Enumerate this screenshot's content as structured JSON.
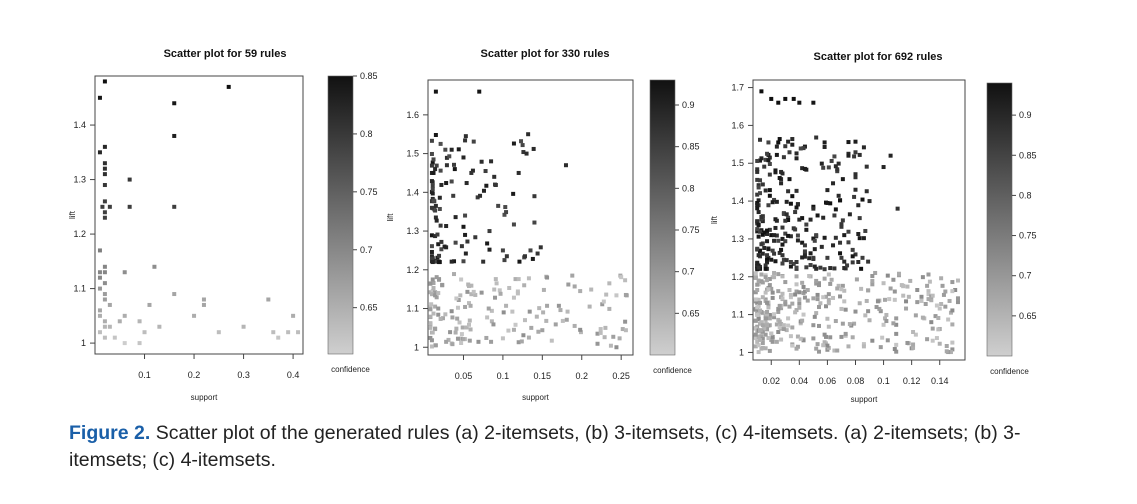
{
  "figure_caption": {
    "label": "Figure 2.",
    "text": "Scatter plot of the generated rules (a) 2-itemsets, (b) 3-itemsets, (c) 4-itemsets. (a) 2-itemsets; (b) 3-itemsets; (c) 4-itemsets."
  },
  "colors": {
    "caption_label": "#1a5fa8",
    "high_confidence": "#111111",
    "low_confidence": "#cccccc"
  },
  "chart_data": [
    {
      "type": "scatter",
      "title": "Scatter plot for 59 rules",
      "xlabel": "support",
      "ylabel": "lift",
      "colorbar_label": "confidence",
      "xlim": [
        0,
        0.42
      ],
      "ylim": [
        0.98,
        1.49
      ],
      "xticks": [
        0.1,
        0.2,
        0.3,
        0.4
      ],
      "xtick_labels": [
        "0.1",
        "0.2",
        "0.3",
        "0.4"
      ],
      "yticks": [
        1.0,
        1.1,
        1.2,
        1.3,
        1.4
      ],
      "ytick_labels": [
        "1",
        "1.1",
        "1.2",
        "1.3",
        "1.4"
      ],
      "color_range": [
        0.61,
        0.85
      ],
      "cticks": [
        0.65,
        0.7,
        0.75,
        0.8,
        0.85
      ],
      "ctick_labels": [
        "0.65",
        "0.7",
        "0.75",
        "0.8",
        "0.85"
      ],
      "points": [
        [
          0.02,
          1.48,
          0.85
        ],
        [
          0.01,
          1.45,
          0.84
        ],
        [
          0.16,
          1.44,
          0.84
        ],
        [
          0.27,
          1.47,
          0.85
        ],
        [
          0.16,
          1.38,
          0.83
        ],
        [
          0.02,
          1.36,
          0.82
        ],
        [
          0.01,
          1.35,
          0.82
        ],
        [
          0.02,
          1.33,
          0.81
        ],
        [
          0.02,
          1.32,
          0.81
        ],
        [
          0.02,
          1.31,
          0.81
        ],
        [
          0.07,
          1.3,
          0.8
        ],
        [
          0.02,
          1.29,
          0.8
        ],
        [
          0.015,
          1.25,
          0.79
        ],
        [
          0.02,
          1.26,
          0.79
        ],
        [
          0.03,
          1.25,
          0.79
        ],
        [
          0.02,
          1.24,
          0.79
        ],
        [
          0.02,
          1.23,
          0.79
        ],
        [
          0.07,
          1.25,
          0.79
        ],
        [
          0.16,
          1.25,
          0.79
        ],
        [
          0.01,
          1.17,
          0.71
        ],
        [
          0.02,
          1.14,
          0.7
        ],
        [
          0.02,
          1.13,
          0.7
        ],
        [
          0.06,
          1.13,
          0.69
        ],
        [
          0.12,
          1.14,
          0.69
        ],
        [
          0.01,
          1.12,
          0.7
        ],
        [
          0.02,
          1.11,
          0.69
        ],
        [
          0.01,
          1.1,
          0.68
        ],
        [
          0.02,
          1.09,
          0.67
        ],
        [
          0.16,
          1.09,
          0.66
        ],
        [
          0.01,
          1.06,
          0.66
        ],
        [
          0.01,
          1.05,
          0.65
        ],
        [
          0.02,
          1.04,
          0.65
        ],
        [
          0.02,
          1.03,
          0.64
        ],
        [
          0.01,
          1.02,
          0.63
        ],
        [
          0.02,
          1.01,
          0.63
        ],
        [
          0.05,
          1.04,
          0.65
        ],
        [
          0.06,
          1.05,
          0.65
        ],
        [
          0.09,
          1.04,
          0.64
        ],
        [
          0.09,
          1.0,
          0.62
        ],
        [
          0.1,
          1.02,
          0.63
        ],
        [
          0.13,
          1.03,
          0.64
        ],
        [
          0.2,
          1.05,
          0.65
        ],
        [
          0.22,
          1.07,
          0.66
        ],
        [
          0.22,
          1.08,
          0.66
        ],
        [
          0.25,
          1.02,
          0.63
        ],
        [
          0.3,
          1.03,
          0.64
        ],
        [
          0.35,
          1.08,
          0.66
        ],
        [
          0.36,
          1.02,
          0.63
        ],
        [
          0.37,
          1.01,
          0.62
        ],
        [
          0.39,
          1.02,
          0.63
        ],
        [
          0.4,
          1.05,
          0.65
        ],
        [
          0.41,
          1.02,
          0.63
        ],
        [
          0.03,
          1.03,
          0.64
        ],
        [
          0.04,
          1.01,
          0.62
        ],
        [
          0.06,
          1.0,
          0.61
        ],
        [
          0.11,
          1.07,
          0.66
        ],
        [
          0.03,
          1.07,
          0.66
        ],
        [
          0.02,
          1.08,
          0.67
        ],
        [
          0.01,
          1.13,
          0.7
        ]
      ]
    },
    {
      "type": "scatter",
      "title": "Scatter plot for 330 rules",
      "xlabel": "support",
      "ylabel": "lift",
      "colorbar_label": "confidence",
      "xlim": [
        0.005,
        0.265
      ],
      "ylim": [
        0.98,
        1.69
      ],
      "xticks": [
        0.05,
        0.1,
        0.15,
        0.2,
        0.25
      ],
      "xtick_labels": [
        "0.05",
        "0.1",
        "0.15",
        "0.2",
        "0.25"
      ],
      "yticks": [
        1.0,
        1.1,
        1.2,
        1.3,
        1.4,
        1.5,
        1.6
      ],
      "ytick_labels": [
        "1",
        "1.1",
        "1.2",
        "1.3",
        "1.4",
        "1.5",
        "1.6"
      ],
      "color_range": [
        0.6,
        0.93
      ],
      "cticks": [
        0.65,
        0.7,
        0.75,
        0.8,
        0.85,
        0.9
      ],
      "ctick_labels": [
        "0.65",
        "0.7",
        "0.75",
        "0.8",
        "0.85",
        "0.9"
      ]
    },
    {
      "type": "scatter",
      "title": "Scatter plot for 692 rules",
      "xlabel": "support",
      "ylabel": "lift",
      "colorbar_label": "confidence",
      "xlim": [
        0.007,
        0.158
      ],
      "ylim": [
        0.98,
        1.72
      ],
      "xticks": [
        0.02,
        0.04,
        0.06,
        0.08,
        0.1,
        0.12,
        0.14
      ],
      "xtick_labels": [
        "0.02",
        "0.04",
        "0.06",
        "0.08",
        "0.1",
        "0.12",
        "0.14"
      ],
      "yticks": [
        1.0,
        1.1,
        1.2,
        1.3,
        1.4,
        1.5,
        1.6,
        1.7
      ],
      "ytick_labels": [
        "1",
        "1.1",
        "1.2",
        "1.3",
        "1.4",
        "1.5",
        "1.6",
        "1.7"
      ],
      "color_range": [
        0.6,
        0.94
      ],
      "cticks": [
        0.65,
        0.7,
        0.75,
        0.8,
        0.85,
        0.9
      ],
      "ctick_labels": [
        "0.65",
        "0.7",
        "0.75",
        "0.8",
        "0.85",
        "0.9"
      ]
    }
  ]
}
